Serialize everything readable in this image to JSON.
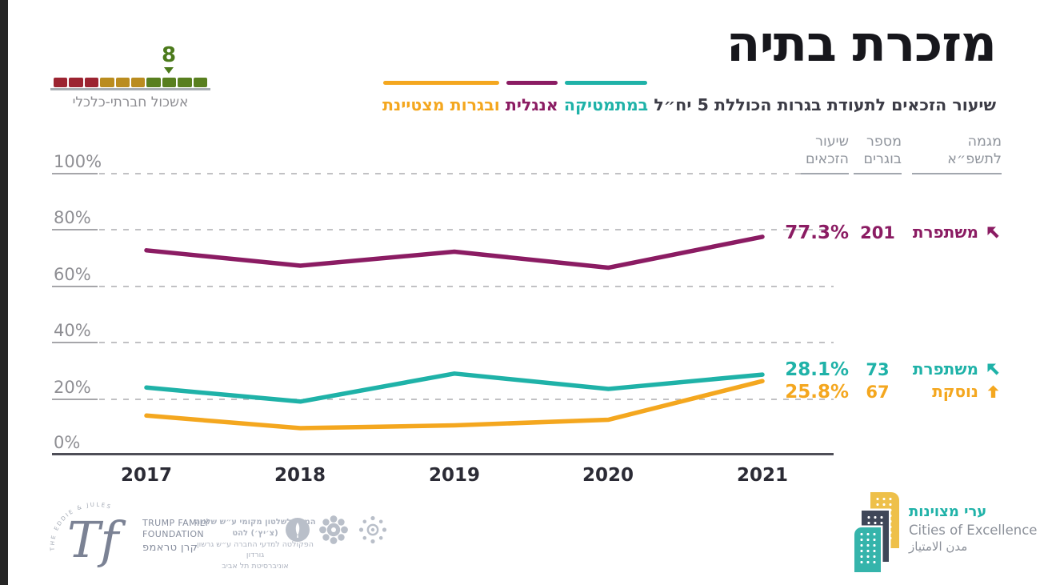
{
  "colors": {
    "teal": "#1fb2a8",
    "purple": "#8b1c63",
    "orange": "#f4a71f",
    "cluster_red": "#9c2431",
    "cluster_ochre": "#ba8c1f",
    "cluster_green": "#587f1f",
    "cluster_marker_green": "#4b7a1b",
    "logo_yellow": "#eec04a",
    "logo_navy": "#3f4758",
    "logo_teal": "#35b4ab"
  },
  "page": {
    "title": "מזכרת בתיה"
  },
  "subtitle": {
    "prefix": "שיעור הזכאים לתעודת בגרות הכוללת 5 יח״ל",
    "math_word": "במתמטיקה",
    "english_word": "אנגלית",
    "excellent_word": "ובגרות מצטיינת"
  },
  "cluster": {
    "label": "אשכול חברתי-כלכלי",
    "value": "8",
    "segment_colors": [
      "#9c2431",
      "#9c2431",
      "#9c2431",
      "#ba8c1f",
      "#ba8c1f",
      "#ba8c1f",
      "#587f1f",
      "#587f1f",
      "#587f1f",
      "#587f1f"
    ],
    "marker_segment": 8
  },
  "chart_data": {
    "type": "line",
    "title": "מזכרת בתיה",
    "subtitle": "שיעור הזכאים לתעודת בגרות הכוללת 5 יח״ל במתמטיקה אנגלית ובגרות מצטיינת",
    "x": [
      2017,
      2018,
      2019,
      2020,
      2021
    ],
    "x_labels": [
      "2017",
      "2018",
      "2019",
      "2020",
      "2021"
    ],
    "y_tick_labels": [
      "100%",
      "80%",
      "60%",
      "40%",
      "20%",
      "0%"
    ],
    "ylim": [
      0,
      100
    ],
    "grid": "dashed-horizontal",
    "legend_position": "subtitle-inline-top-right",
    "series": [
      {
        "name": "אנגלית",
        "subject": "english-5-units",
        "color": "#8b1c63",
        "values": [
          72.5,
          67,
          72,
          66.3,
          77.3
        ],
        "final_share": "77.3%",
        "graduates": "201",
        "trend": "משתפרת"
      },
      {
        "name": "במתמטיקה",
        "subject": "math-5-units",
        "color": "#1fb2a8",
        "values": [
          23.5,
          18.5,
          28.5,
          23,
          28.1
        ],
        "final_share": "28.1%",
        "graduates": "73",
        "trend": "משתפרת"
      },
      {
        "name": "ובגרות מצטיינת",
        "subject": "excellent-bagrut",
        "color": "#f4a71f",
        "values": [
          13.5,
          9,
          10,
          12,
          25.8
        ],
        "final_share": "25.8%",
        "graduates": "67",
        "trend": "נוסקת"
      }
    ]
  },
  "stats": {
    "headers": [
      {
        "line1": "מגמה",
        "line2": "לתשפ״א"
      },
      {
        "line1": "מספר",
        "line2": "בוגרים"
      },
      {
        "line1": "שיעור",
        "line2": "הזכאים"
      }
    ],
    "rows": [
      {
        "trend": "משתפרת",
        "arrow": "up-left",
        "count": "201",
        "pct": "77.3%"
      },
      {
        "trend": "משתפרת",
        "arrow": "up-left",
        "count": "73",
        "pct": "28.1%"
      },
      {
        "trend": "נוסקת",
        "arrow": "up",
        "count": "67",
        "pct": "25.8%"
      }
    ]
  },
  "footer": {
    "tf": {
      "arc": "THE EDDIE & JULES",
      "initials": "Tf",
      "line1": "TRUMP FAMILY",
      "line2": "FOUNDATION",
      "line3": "קרן טראמפ"
    },
    "institute": {
      "line1": "המכון לשלטון מקומי ע״ש שלמה (צ׳יץ׳) להט",
      "line2": "הפקולטה למדעי החברה ע״ש גרשון גורדון",
      "line3": "אוניברסיטת תל אביב"
    },
    "cities": {
      "he": "ערי מצוינות",
      "en": "Cities of Excellence",
      "ar": "مدن الامتياز"
    }
  }
}
